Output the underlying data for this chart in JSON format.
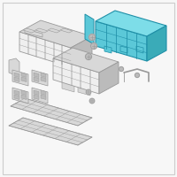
{
  "background_color": "#f7f7f7",
  "border_color": "#cccccc",
  "highlight_color": "#5bc8d8",
  "highlight_edge": "#2090a8",
  "gray_face": "#d8d8d8",
  "gray_edge": "#999999",
  "gray_mid": "#bbbbbb",
  "white_face": "#efefef"
}
